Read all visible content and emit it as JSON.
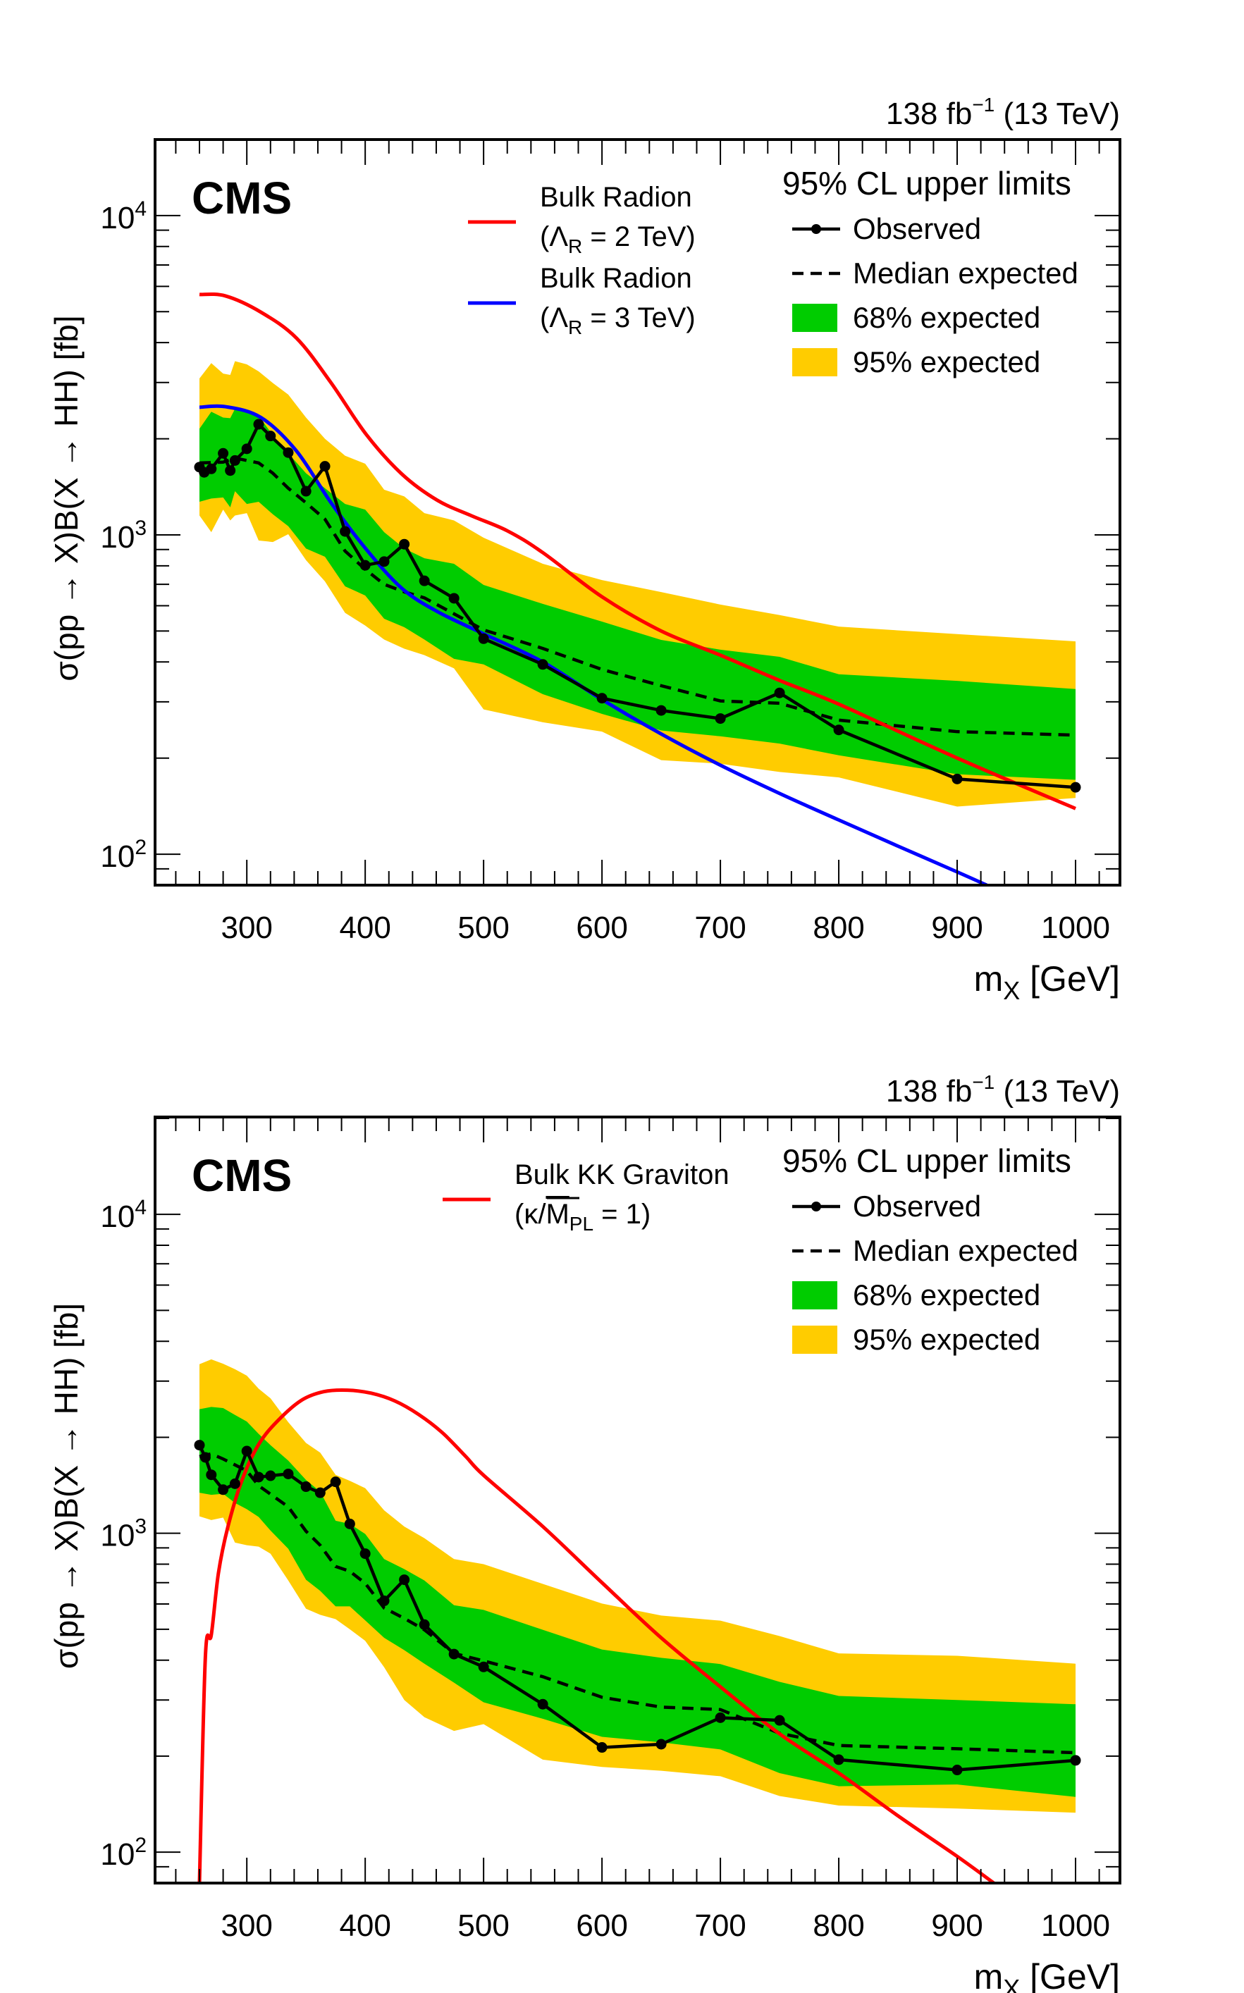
{
  "chart_data": [
    {
      "type": "line",
      "panel": "top",
      "experiment_label": "CMS",
      "lumi_label": "138 fb",
      "lumi_exponent": "−1",
      "energy_label": "(13 TeV)",
      "xlabel": "m",
      "xlabel_sub": "X",
      "xlabel_unit": "[GeV]",
      "ylabel": "σ(pp → X)B(X → HH) [fb]",
      "yscale": "log",
      "xlim": [
        222.5,
        1037.5
      ],
      "ylim": [
        80,
        17300
      ],
      "xticks": [
        300,
        400,
        500,
        600,
        700,
        800,
        900,
        1000
      ],
      "yticks": [
        {
          "base": "10",
          "exp": "2",
          "value": 100
        },
        {
          "base": "10",
          "exp": "3",
          "value": 1000
        },
        {
          "base": "10",
          "exp": "4",
          "value": 10000
        }
      ],
      "legend_header": "95% CL upper limits",
      "legend": [
        {
          "label": "Observed",
          "kind": "observed"
        },
        {
          "label": "Median expected",
          "kind": "median"
        },
        {
          "label": "68% expected",
          "kind": "band68",
          "color": "#00cc00"
        },
        {
          "label": "95% expected",
          "kind": "band95",
          "color": "#ffcc00"
        }
      ],
      "model_legend": [
        {
          "line1": "Bulk Radion",
          "line2_pre": "(Λ",
          "line2_sub": "R",
          "line2_post": " = 2 TeV)",
          "color": "#ff0000"
        },
        {
          "line1": "Bulk Radion",
          "line2_pre": "(Λ",
          "line2_sub": "R",
          "line2_post": " = 3 TeV)",
          "color": "#0000ff"
        }
      ],
      "observed": {
        "x": [
          260,
          264,
          270,
          280,
          286,
          290,
          300,
          310,
          320,
          335,
          350,
          366,
          383,
          400,
          416,
          433,
          450,
          475,
          500,
          550,
          600,
          650,
          700,
          750,
          800,
          900,
          1000
        ],
        "y": [
          1630,
          1570,
          1610,
          1800,
          1590,
          1710,
          1860,
          2220,
          2040,
          1810,
          1370,
          1640,
          1025,
          803,
          825,
          935,
          718,
          633,
          473,
          393,
          308,
          282,
          266,
          320,
          245,
          172,
          162
        ]
      },
      "median_expected": {
        "x": [
          260,
          280,
          290,
          310,
          322,
          335,
          350,
          366,
          383,
          400,
          416,
          433,
          450,
          475,
          500,
          550,
          600,
          650,
          700,
          750,
          800,
          900,
          1000
        ],
        "y": [
          1680,
          1690,
          1740,
          1680,
          1560,
          1400,
          1260,
          1120,
          890,
          780,
          700,
          663,
          635,
          566,
          504,
          441,
          379,
          337,
          302,
          297,
          263,
          242,
          236
        ]
      },
      "band68": {
        "x": [
          260,
          270,
          280,
          286,
          290,
          300,
          310,
          322,
          335,
          350,
          366,
          383,
          400,
          416,
          433,
          450,
          475,
          500,
          550,
          600,
          650,
          700,
          750,
          800,
          900,
          1000
        ],
        "low": [
          1270,
          1300,
          1310,
          1220,
          1370,
          1250,
          1270,
          1160,
          1065,
          906,
          854,
          690,
          646,
          546,
          514,
          470,
          409,
          393,
          317,
          275,
          244,
          234,
          222,
          204,
          178,
          171
        ],
        "high": [
          2150,
          2430,
          2330,
          2320,
          2480,
          2430,
          2360,
          2050,
          1800,
          1560,
          1400,
          1250,
          1200,
          1020,
          906,
          845,
          812,
          697,
          608,
          535,
          469,
          437,
          415,
          366,
          349,
          329
        ]
      },
      "band95": {
        "x": [
          260,
          270,
          280,
          286,
          290,
          300,
          310,
          322,
          335,
          350,
          366,
          383,
          400,
          416,
          433,
          450,
          475,
          500,
          550,
          600,
          650,
          700,
          750,
          800,
          900,
          1000
        ],
        "low": [
          1150,
          1020,
          1200,
          1110,
          1150,
          1170,
          960,
          950,
          1005,
          833,
          715,
          570,
          520,
          470,
          440,
          420,
          382,
          284,
          259,
          242,
          197,
          192,
          181,
          174,
          141,
          150
        ],
        "high": [
          3090,
          3450,
          3200,
          3170,
          3500,
          3420,
          3250,
          2990,
          2750,
          2330,
          2000,
          1770,
          1670,
          1385,
          1320,
          1170,
          1110,
          980,
          812,
          722,
          662,
          605,
          561,
          516,
          489,
          464
        ]
      },
      "models": [
        {
          "name": "Bulk Radion (ΛR = 2 TeV)",
          "color": "#ff0000",
          "x": [
            260,
            282,
            312,
            342,
            371,
            401,
            431,
            461,
            490,
            520,
            550,
            600,
            650,
            700,
            750,
            800,
            900,
            1000
          ],
          "y": [
            5660,
            5600,
            4980,
            4130,
            3000,
            2060,
            1550,
            1283,
            1147,
            1030,
            880,
            640,
            500,
            420,
            350,
            295,
            200,
            139
          ]
        },
        {
          "name": "Bulk Radion (ΛR = 3 TeV)",
          "color": "#0000ff",
          "x": [
            260,
            282,
            312,
            342,
            371,
            401,
            431,
            461,
            500,
            550,
            600,
            650,
            700,
            750,
            800,
            850,
            900,
            925
          ],
          "y": [
            2510,
            2520,
            2330,
            1830,
            1263,
            900,
            680,
            575,
            490,
            400,
            305,
            238,
            190,
            155,
            128,
            106,
            88,
            80
          ]
        }
      ]
    },
    {
      "type": "line",
      "panel": "bottom",
      "experiment_label": "CMS",
      "lumi_label": "138 fb",
      "lumi_exponent": "−1",
      "energy_label": "(13 TeV)",
      "xlabel": "m",
      "xlabel_sub": "X",
      "xlabel_unit": "[GeV]",
      "ylabel": "σ(pp → X)B(X → HH) [fb]",
      "yscale": "log",
      "xlim": [
        222.5,
        1037.5
      ],
      "ylim": [
        80,
        20200
      ],
      "xticks": [
        300,
        400,
        500,
        600,
        700,
        800,
        900,
        1000
      ],
      "yticks": [
        {
          "base": "10",
          "exp": "2",
          "value": 100
        },
        {
          "base": "10",
          "exp": "3",
          "value": 1000
        },
        {
          "base": "10",
          "exp": "4",
          "value": 10000
        }
      ],
      "legend_header": "95% CL upper limits",
      "legend": [
        {
          "label": "Observed",
          "kind": "observed"
        },
        {
          "label": "Median expected",
          "kind": "median"
        },
        {
          "label": "68% expected",
          "kind": "band68",
          "color": "#00cc00"
        },
        {
          "label": "95% expected",
          "kind": "band95",
          "color": "#ffcc00"
        }
      ],
      "model_legend": [
        {
          "line1": "Bulk KK Graviton",
          "line2_pre": "(κ/",
          "line2_over": "M",
          "line2_sub": "PL",
          "line2_post": " = 1)",
          "color": "#ff0000"
        }
      ],
      "observed": {
        "x": [
          260,
          265,
          270,
          280,
          290,
          300,
          310,
          320,
          335,
          350,
          362,
          375,
          387,
          400,
          416,
          433,
          450,
          475,
          500,
          550,
          600,
          650,
          700,
          750,
          800,
          900,
          1000
        ],
        "y": [
          1890,
          1730,
          1525,
          1370,
          1430,
          1810,
          1500,
          1515,
          1535,
          1400,
          1340,
          1450,
          1070,
          863,
          614,
          715,
          517,
          418,
          381,
          291,
          213,
          218,
          264,
          259,
          195,
          181,
          194
        ]
      },
      "median_expected": {
        "x": [
          260,
          270,
          280,
          300,
          310,
          335,
          350,
          362,
          375,
          387,
          400,
          416,
          433,
          450,
          475,
          500,
          550,
          600,
          650,
          700,
          750,
          800,
          900,
          1000
        ],
        "y": [
          1740,
          1775,
          1710,
          1570,
          1410,
          1210,
          1015,
          917,
          787,
          760,
          697,
          583,
          541,
          498,
          420,
          398,
          355,
          306,
          285,
          280,
          236,
          216,
          211,
          205
        ]
      },
      "band68": {
        "x": [
          260,
          270,
          280,
          290,
          300,
          310,
          320,
          335,
          350,
          362,
          375,
          387,
          400,
          416,
          433,
          450,
          475,
          500,
          550,
          600,
          650,
          700,
          750,
          800,
          900,
          1000
        ],
        "low": [
          1340,
          1320,
          1330,
          1245,
          1190,
          1125,
          1020,
          894,
          715,
          660,
          590,
          590,
          533,
          470,
          430,
          390,
          340,
          295,
          262,
          230,
          221,
          210,
          177,
          161,
          163,
          149
        ],
        "high": [
          2450,
          2490,
          2470,
          2350,
          2240,
          2050,
          1890,
          1690,
          1470,
          1350,
          1095,
          1070,
          995,
          830,
          772,
          711,
          595,
          575,
          498,
          432,
          407,
          389,
          342,
          309,
          300,
          291
        ]
      },
      "band95": {
        "x": [
          260,
          270,
          280,
          290,
          300,
          310,
          320,
          335,
          350,
          362,
          375,
          387,
          400,
          416,
          433,
          450,
          475,
          500,
          550,
          600,
          650,
          700,
          750,
          800,
          900,
          1000
        ],
        "low": [
          1130,
          1100,
          1120,
          935,
          917,
          908,
          863,
          711,
          580,
          555,
          538,
          500,
          460,
          380,
          300,
          265,
          240,
          252,
          195,
          185,
          180,
          173,
          150,
          140,
          137,
          133
        ],
        "high": [
          3390,
          3510,
          3400,
          3270,
          3120,
          2840,
          2650,
          2230,
          1920,
          1790,
          1525,
          1460,
          1385,
          1180,
          1050,
          965,
          830,
          800,
          694,
          602,
          552,
          532,
          476,
          420,
          413,
          390
        ]
      },
      "models": [
        {
          "name": "Bulk KK Graviton (κ/MPL = 1)",
          "color": "#ff0000",
          "x": [
            260,
            265,
            270,
            276,
            284,
            296,
            310,
            326,
            346,
            365,
            385,
            405,
            425,
            445,
            465,
            485,
            500,
            550,
            600,
            650,
            700,
            750,
            800,
            850,
            900,
            931
          ],
          "y": [
            80,
            410,
            480,
            749,
            1047,
            1470,
            1900,
            2250,
            2610,
            2780,
            2810,
            2750,
            2600,
            2360,
            2070,
            1740,
            1520,
            1050,
            700,
            470,
            330,
            235,
            177,
            130,
            97,
            80
          ]
        }
      ]
    }
  ]
}
